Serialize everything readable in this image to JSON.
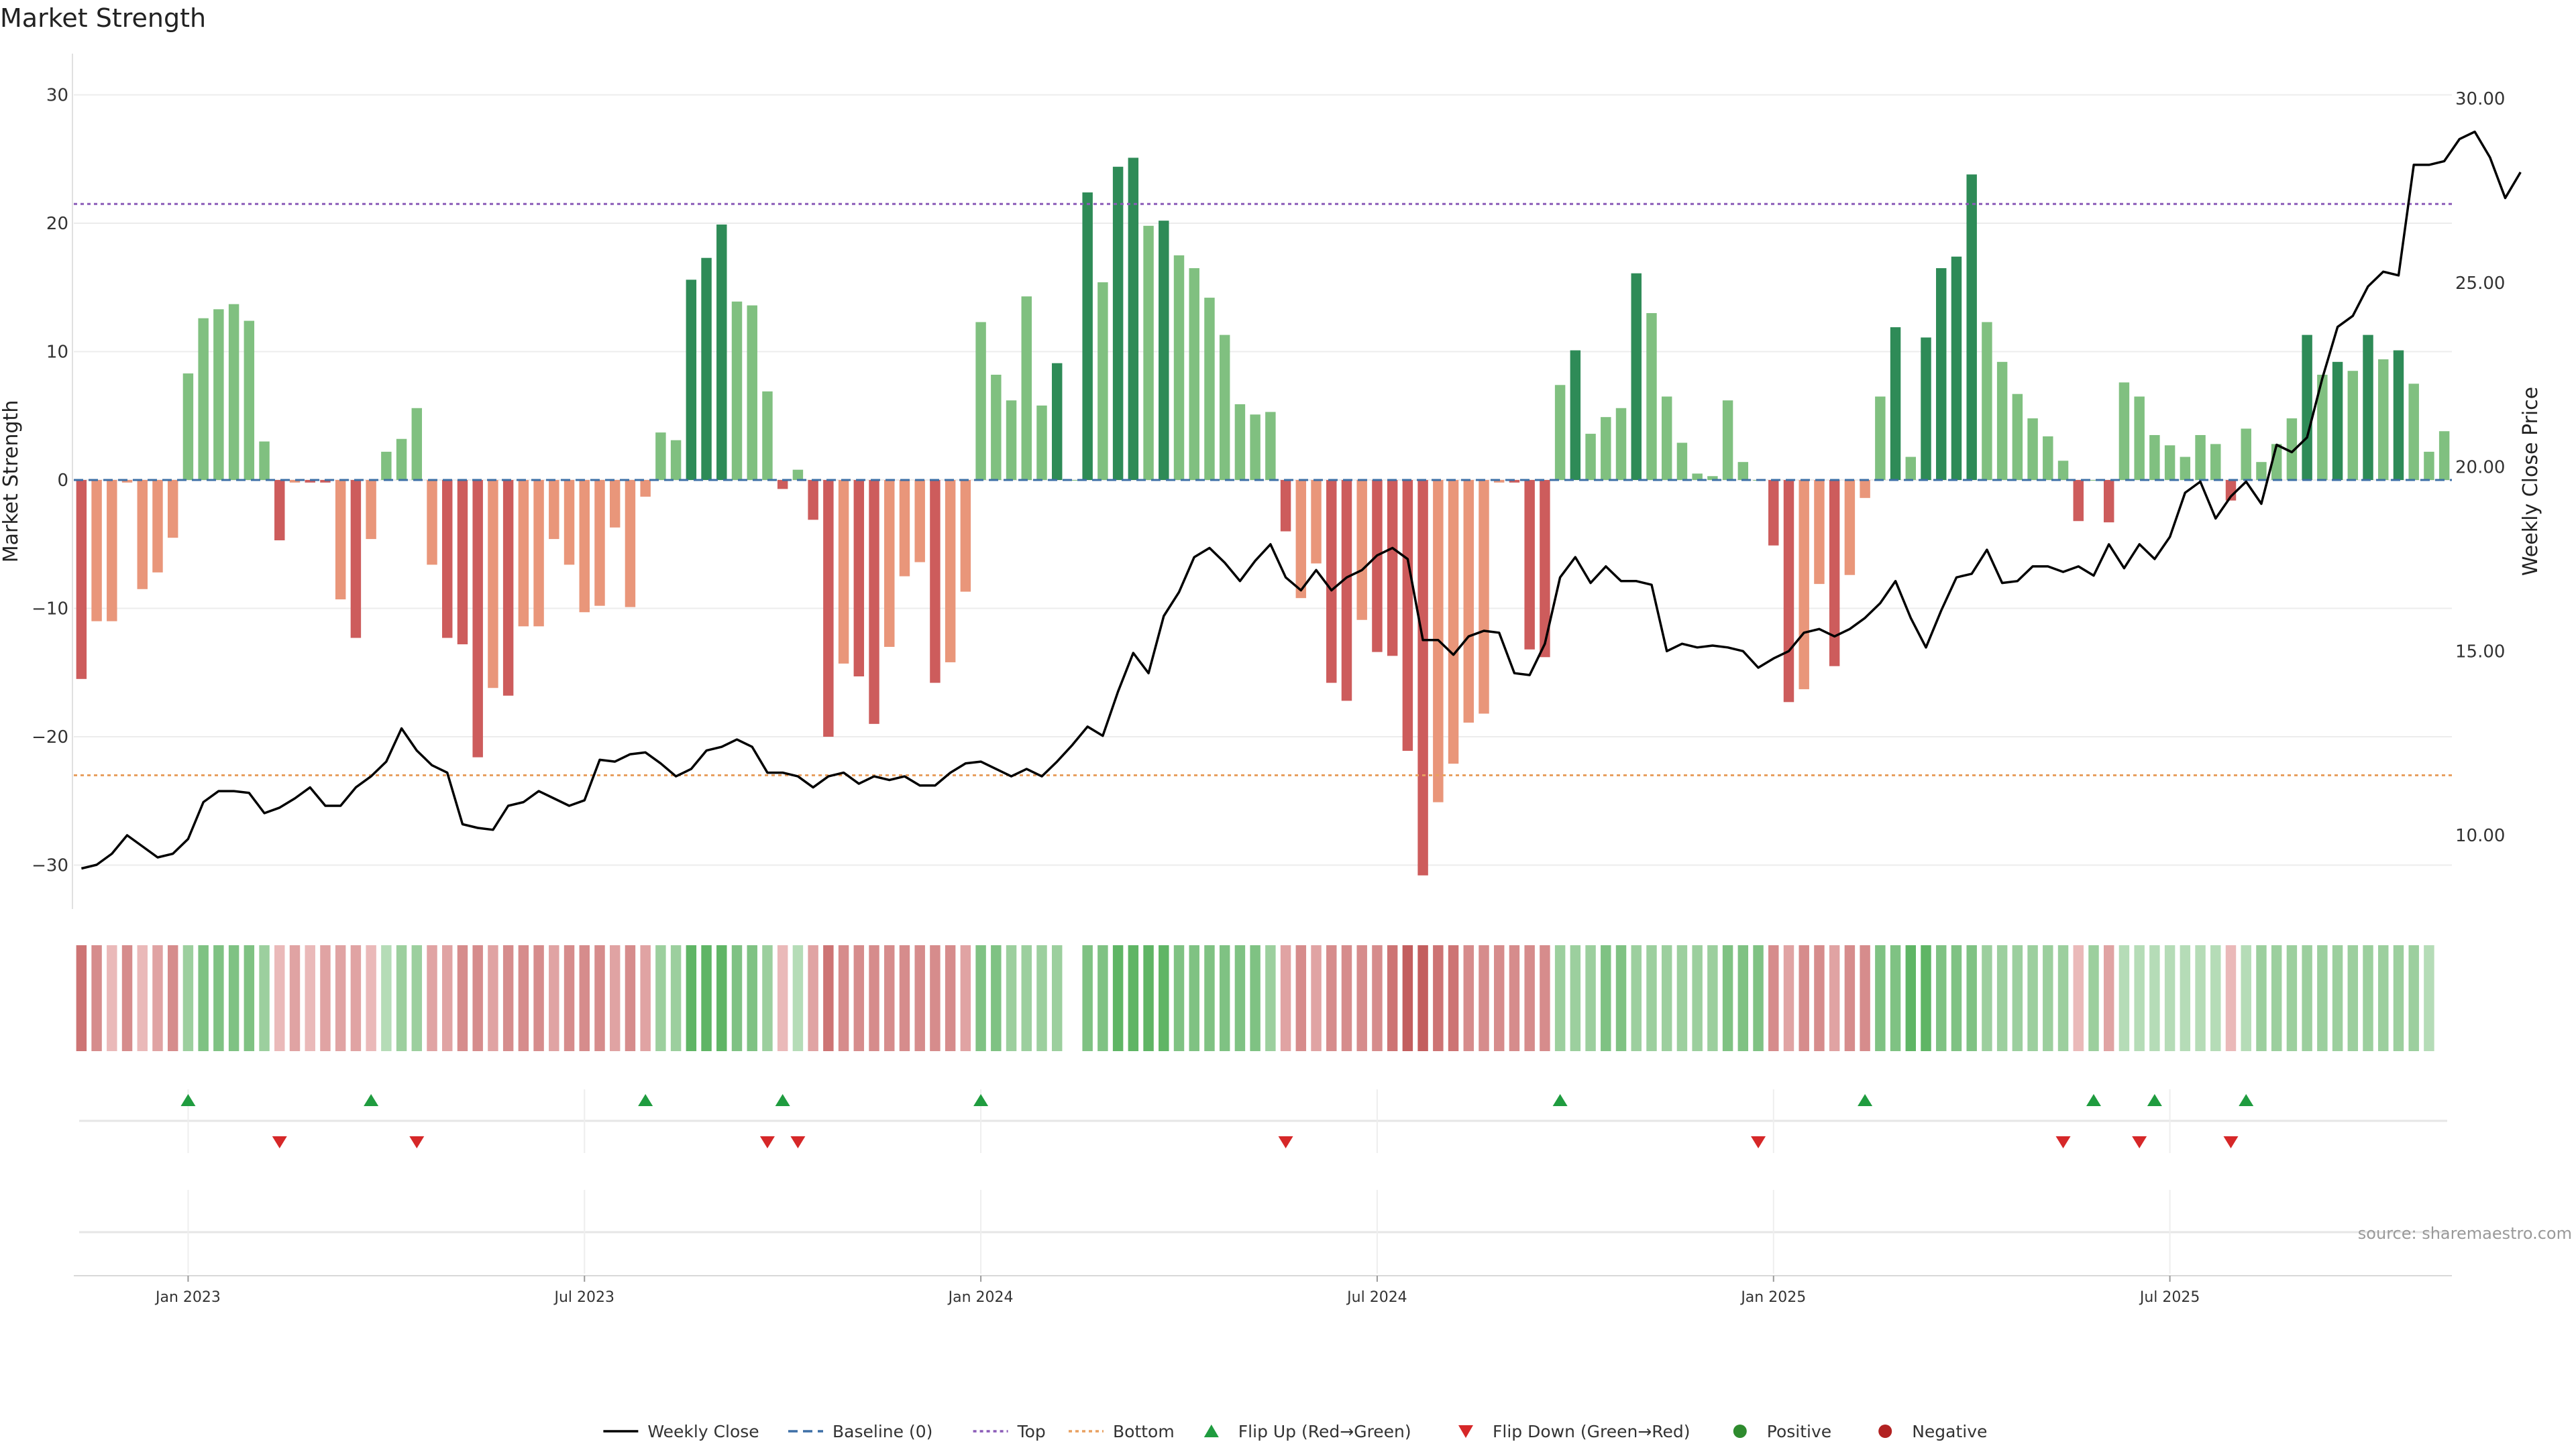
{
  "chart_data": {
    "type": "bar",
    "title": "Market Strength",
    "ylabel": "Market Strength",
    "y2label": "Weekly Close Price",
    "ylim": [
      -33,
      33
    ],
    "y2lim": [
      8.5,
      31.0
    ],
    "yticks": [
      30,
      20,
      10,
      0,
      -10,
      -20,
      -30
    ],
    "yticklabels": [
      "30",
      "20",
      "10",
      "0",
      "−10",
      "−20",
      "−30"
    ],
    "y2ticks": [
      30.0,
      25.0,
      20.0,
      15.0,
      10.0
    ],
    "y2ticklabels": [
      "30.00",
      "25.00",
      "20.00",
      "15.00",
      "10.00"
    ],
    "date_ticks": [
      {
        "label": "Jan 2023",
        "index": 7
      },
      {
        "label": "Jul 2023",
        "index": 33
      },
      {
        "label": "Jan 2024",
        "index": 59
      },
      {
        "label": "Jul 2024",
        "index": 85
      },
      {
        "label": "Jan 2025",
        "index": 111
      },
      {
        "label": "Jul 2025",
        "index": 137
      }
    ],
    "reference_lines": {
      "baseline": 0,
      "top": 21.5,
      "bottom": -23.0
    },
    "strength": [
      -15.5,
      -11,
      -11,
      -0.2,
      -8.5,
      -7.2,
      -4.5,
      8.3,
      12.6,
      13.3,
      13.7,
      12.4,
      3,
      -4.7,
      -0.2,
      -0.2,
      -0.2,
      -9.3,
      -12.3,
      -4.6,
      2.2,
      3.2,
      5.6,
      -6.6,
      -12.3,
      -12.8,
      -21.6,
      -16.2,
      -16.8,
      -11.4,
      -11.4,
      -4.6,
      -6.6,
      -10.3,
      -9.8,
      -3.7,
      -9.9,
      -1.3,
      3.7,
      3.1,
      15.6,
      17.3,
      19.9,
      13.9,
      13.6,
      6.9,
      -0.7,
      0.8,
      -3.1,
      -20,
      -14.3,
      -15.3,
      -19,
      -13,
      -7.5,
      -6.4,
      -15.8,
      -14.2,
      -8.7,
      12.3,
      8.2,
      6.2,
      14.3,
      5.8,
      9.1,
      0,
      22.4,
      15.4,
      24.4,
      25.1,
      19.8,
      20.2,
      17.5,
      16.5,
      14.2,
      11.3,
      5.9,
      5.1,
      5.3,
      -4,
      -9.2,
      -6.5,
      -15.8,
      -17.2,
      -10.9,
      -13.4,
      -13.7,
      -21.1,
      -30.8,
      -25.1,
      -22.1,
      -18.9,
      -18.2,
      -0.2,
      -0.2,
      -13.2,
      -13.8,
      7.4,
      10.1,
      3.6,
      4.9,
      5.6,
      16.1,
      13,
      6.5,
      2.9,
      0.5,
      0.3,
      6.2,
      1.4,
      0,
      -5.1,
      -17.3,
      -16.3,
      -8.1,
      -14.5,
      -7.4,
      -1.4,
      6.5,
      11.9,
      1.8,
      11.1,
      16.5,
      17.4,
      23.8,
      12.3,
      9.2,
      6.7,
      4.8,
      3.4,
      1.5,
      -3.2,
      0,
      -3.3,
      7.6,
      6.5,
      3.5,
      2.7,
      1.8,
      3.5,
      2.8,
      -1.6,
      4,
      1.4,
      2.8,
      4.8,
      11.3,
      8.2,
      9.2,
      8.5,
      11.3,
      9.4,
      10.1,
      7.5,
      2.2,
      3.8
    ],
    "weekly_close": [
      9.1,
      9.2,
      9.5,
      10.0,
      9.7,
      9.4,
      9.5,
      9.9,
      10.9,
      11.2,
      11.2,
      11.15,
      10.6,
      10.75,
      11.0,
      11.3,
      10.8,
      10.8,
      11.3,
      11.6,
      12.0,
      12.9,
      12.3,
      11.9,
      11.7,
      10.3,
      10.2,
      10.15,
      10.8,
      10.9,
      11.2,
      11.0,
      10.8,
      10.95,
      12.05,
      12.0,
      12.2,
      12.25,
      11.95,
      11.6,
      11.8,
      12.3,
      12.4,
      12.6,
      12.4,
      11.7,
      11.7,
      11.6,
      11.3,
      11.6,
      11.7,
      11.4,
      11.6,
      11.5,
      11.6,
      11.35,
      11.35,
      11.7,
      11.95,
      12.0,
      11.8,
      11.6,
      11.8,
      11.6,
      12.0,
      12.45,
      12.95,
      12.7,
      13.9,
      14.95,
      14.4,
      15.95,
      16.6,
      17.55,
      17.8,
      17.4,
      16.9,
      17.45,
      17.9,
      17.0,
      16.65,
      17.2,
      16.65,
      17.0,
      17.2,
      17.6,
      17.8,
      17.5,
      15.3,
      15.3,
      14.9,
      15.4,
      15.55,
      15.5,
      14.4,
      14.35,
      15.2,
      17.0,
      17.55,
      16.85,
      17.3,
      16.9,
      16.9,
      16.8,
      15.0,
      15.2,
      15.1,
      15.15,
      15.1,
      15.0,
      14.55,
      14.8,
      15.0,
      15.5,
      15.6,
      15.4,
      15.6,
      15.9,
      16.3,
      16.9,
      15.9,
      15.1,
      16.1,
      17.0,
      17.1,
      17.75,
      16.85,
      16.9,
      17.3,
      17.3,
      17.15,
      17.3,
      17.05,
      17.9,
      17.25,
      17.9,
      17.5,
      18.1,
      19.3,
      19.6,
      18.6,
      19.2,
      19.6,
      19.0,
      20.6,
      20.4,
      20.8,
      22.4,
      23.8,
      24.1,
      24.9,
      25.3,
      25.2,
      28.2,
      28.2,
      28.3,
      28.9,
      29.1,
      28.4,
      27.3,
      28.0
    ],
    "tile_shades": [
      4,
      3,
      1,
      3,
      1,
      2,
      3,
      2,
      3,
      3,
      3,
      3,
      2,
      1,
      2,
      1,
      2,
      2,
      2,
      1,
      1,
      2,
      2,
      2,
      2,
      3,
      3,
      2,
      3,
      3,
      3,
      2,
      3,
      3,
      3,
      2,
      3,
      2,
      2,
      2,
      4,
      4,
      4,
      3,
      3,
      2,
      1,
      1,
      2,
      4,
      3,
      3,
      3,
      3,
      3,
      3,
      3,
      3,
      2,
      3,
      3,
      2,
      2,
      2,
      2,
      -1,
      3,
      3,
      4,
      4,
      4,
      4,
      3,
      3,
      3,
      3,
      3,
      3,
      2,
      2,
      3,
      2,
      3,
      3,
      3,
      3,
      4,
      5,
      5,
      4,
      4,
      3,
      3,
      3,
      3,
      3,
      3,
      2,
      2,
      2,
      3,
      3,
      2,
      2,
      2,
      2,
      2,
      2,
      3,
      3,
      3,
      3,
      2,
      3,
      3,
      2,
      3,
      3,
      3,
      3,
      4,
      4,
      3,
      3,
      3,
      2,
      2,
      2,
      2,
      2,
      2,
      1,
      2,
      2,
      1,
      1,
      1,
      1,
      1,
      1,
      1,
      1,
      1,
      2,
      2,
      2,
      2,
      2,
      2,
      2,
      2,
      2,
      2,
      2,
      1
    ],
    "flip_up": [
      7,
      19,
      37,
      46,
      59,
      97,
      117,
      132,
      136,
      142
    ],
    "flip_down": [
      13,
      22,
      45,
      47,
      79,
      110,
      130,
      135,
      141
    ],
    "legend": [
      {
        "label": "Weekly Close",
        "symbol": "line-solid",
        "color": "#000000"
      },
      {
        "label": "Baseline (0)",
        "symbol": "line-dashed",
        "color": "#3d6fa6"
      },
      {
        "label": "Top",
        "symbol": "line-dotted",
        "color": "#8b5cb8"
      },
      {
        "label": "Bottom",
        "symbol": "line-dotted",
        "color": "#e8a060"
      },
      {
        "label": "Flip Up (Red→Green)",
        "symbol": "triangle-up",
        "color": "#1f9c3f"
      },
      {
        "label": "Flip Down (Green→Red)",
        "symbol": "triangle-down",
        "color": "#d62728"
      },
      {
        "label": "Positive",
        "symbol": "circle",
        "color": "#2e8b2e"
      },
      {
        "label": "Negative",
        "symbol": "circle",
        "color": "#b22222"
      }
    ],
    "colors": {
      "pos_strong": "#2e8b57",
      "pos_weak": "#80c080",
      "neg_strong": "#cd5c5c",
      "neg_weak": "#e9967a",
      "price": "#000000",
      "baseline": "#3d6fa6",
      "top": "#8b5cb8",
      "bottom": "#e8a060",
      "flip_up": "#1f9c3f",
      "flip_down": "#d62728",
      "grid": "#ececec"
    },
    "source": "source: sharemaestro.com"
  }
}
